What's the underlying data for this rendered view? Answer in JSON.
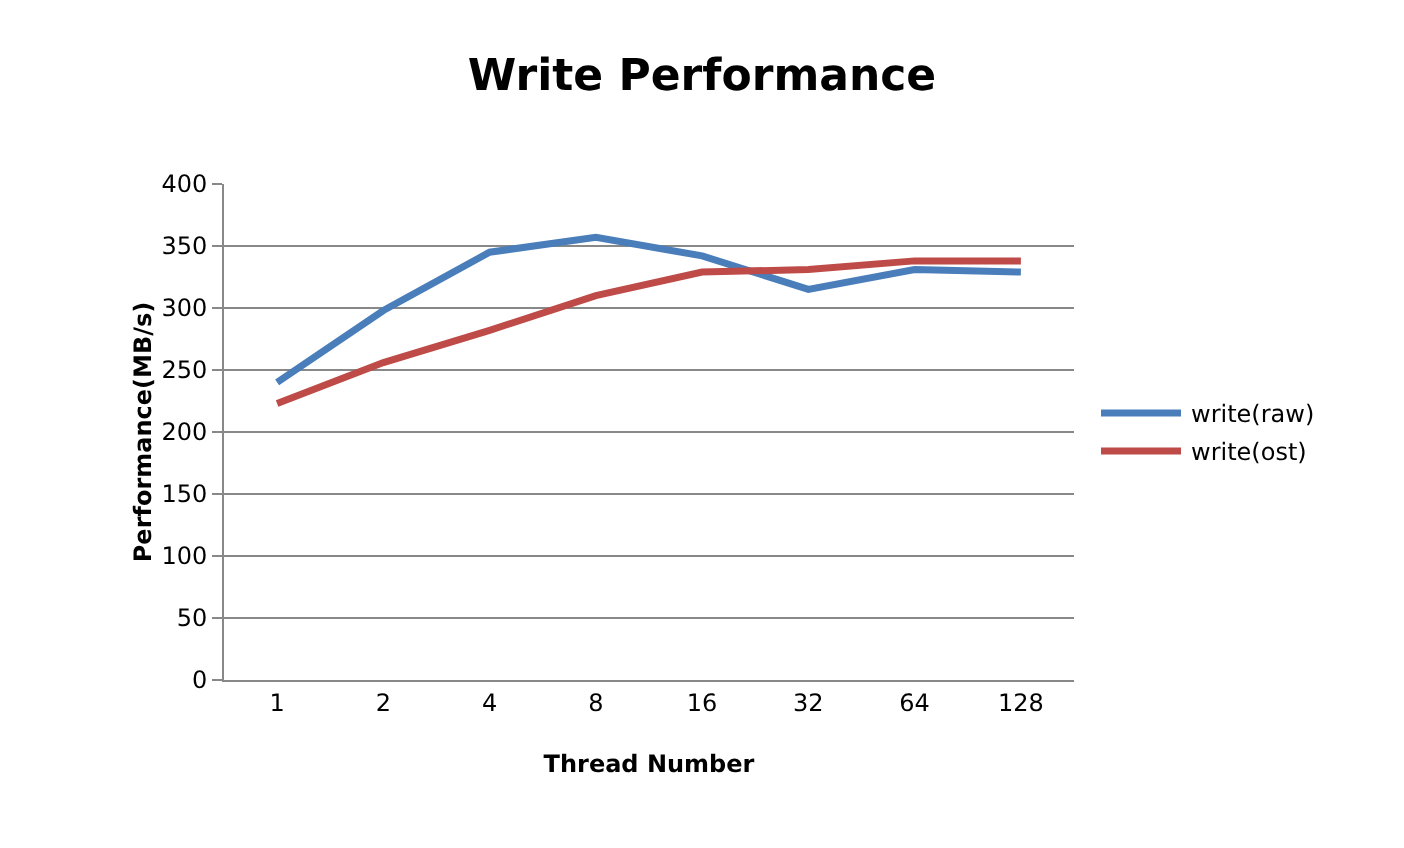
{
  "chart_data": {
    "type": "line",
    "title": "Write Performance",
    "xlabel": "Thread Number",
    "ylabel": "Performance(MB/s)",
    "categories": [
      "1",
      "2",
      "4",
      "8",
      "16",
      "32",
      "64",
      "128"
    ],
    "series": [
      {
        "name": "write(raw)",
        "color": "#4a7ebb",
        "values": [
          240,
          298,
          345,
          357,
          342,
          315,
          331,
          329
        ]
      },
      {
        "name": "write(ost)",
        "color": "#be4b48",
        "values": [
          223,
          256,
          282,
          310,
          329,
          331,
          338,
          338
        ]
      }
    ],
    "ylim": [
      0,
      400
    ],
    "yticks": [
      0,
      50,
      100,
      150,
      200,
      250,
      300,
      350,
      400
    ],
    "grid": "y",
    "legend": "right",
    "marker": "none",
    "line_style": "solid"
  }
}
